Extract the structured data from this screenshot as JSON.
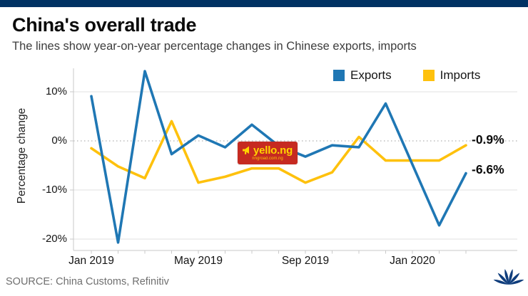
{
  "topbar": {
    "color": "#003263"
  },
  "header": {
    "title": "China's overall trade",
    "subtitle": "The lines show year-on-year percentage changes in Chinese exports, imports"
  },
  "chart_data": {
    "type": "line",
    "title": "China's overall trade",
    "ylabel": "Percentage change",
    "xlabel": "",
    "ylim": [
      -22.5,
      15
    ],
    "grid": "horizontal",
    "zero_line_style": "dotted",
    "legend_position": "top",
    "y_ticks": [
      10,
      0,
      -10,
      -20
    ],
    "y_tick_labels": [
      "10%",
      "0%",
      "-10%",
      "-20%"
    ],
    "x_tick_labels": [
      "Jan 2019",
      "May 2019",
      "Sep 2019",
      "Jan 2020"
    ],
    "x_tick_label_slots": [
      0,
      4,
      8,
      12
    ],
    "month_slot_count": 15,
    "categories": [
      "Jan 2019",
      "Feb 2019",
      "Mar 2019",
      "Apr 2019",
      "May 2019",
      "Jun 2019",
      "Jul 2019",
      "Aug 2019",
      "Sep 2019",
      "Oct 2019",
      "Nov 2019",
      "Dec 2019",
      "Jan-Feb 2020",
      "Mar 2020"
    ],
    "x_slots": [
      0,
      1,
      2,
      3,
      4,
      5,
      6,
      7,
      8,
      9,
      10,
      11,
      13,
      14
    ],
    "series": [
      {
        "name": "Exports",
        "color": "#1F77B4",
        "values": [
          9.1,
          -20.7,
          14.2,
          -2.7,
          1.1,
          -1.3,
          3.3,
          -1.0,
          -3.2,
          -0.9,
          -1.3,
          7.6,
          -17.2,
          -6.6
        ],
        "end_label": "-6.6%"
      },
      {
        "name": "Imports",
        "color": "#FEC10D",
        "values": [
          -1.5,
          -5.2,
          -7.6,
          4.0,
          -8.5,
          -7.3,
          -5.6,
          -5.6,
          -8.5,
          -6.4,
          0.8,
          -4.0,
          -4.0,
          -0.9
        ],
        "end_label": "-0.9%"
      }
    ]
  },
  "watermark": {
    "text": "yello.ng",
    "subtext": "ringroad.com.ng",
    "bg_color": "#C62A21",
    "fg_color": "#FFD400"
  },
  "footer": {
    "source": "SOURCE: China Customs, Refinitiv",
    "logo_text": "CNBC",
    "logo_color": "#0F3D7C"
  }
}
